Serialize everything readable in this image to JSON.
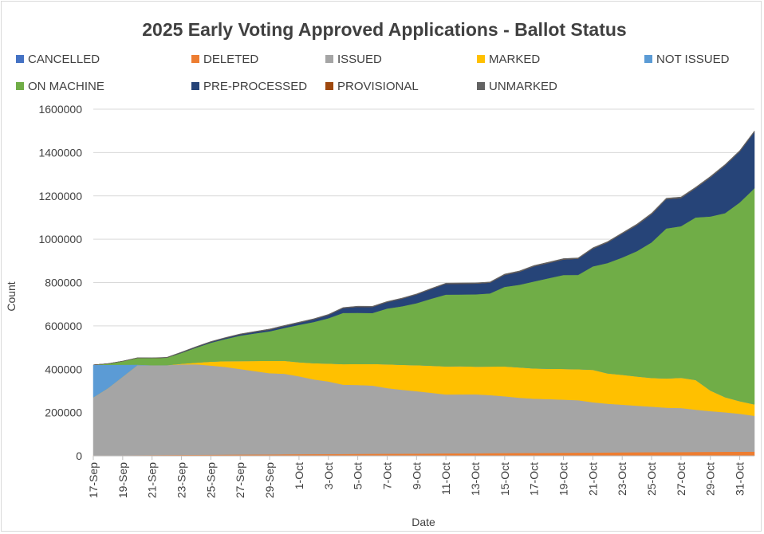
{
  "chart_data": {
    "type": "area",
    "stacked": true,
    "title": "2025 Early Voting Approved Applications - Ballot Status",
    "xlabel": "Date",
    "ylabel": "Count",
    "ylim": [
      0,
      1600000
    ],
    "yticks": [
      0,
      200000,
      400000,
      600000,
      800000,
      1000000,
      1200000,
      1400000,
      1600000
    ],
    "grid": true,
    "legend_position": "top",
    "x": [
      "17-Sep",
      "18-Sep",
      "19-Sep",
      "20-Sep",
      "21-Sep",
      "22-Sep",
      "23-Sep",
      "24-Sep",
      "25-Sep",
      "26-Sep",
      "27-Sep",
      "28-Sep",
      "29-Sep",
      "30-Sep",
      "1-Oct",
      "2-Oct",
      "3-Oct",
      "4-Oct",
      "5-Oct",
      "6-Oct",
      "7-Oct",
      "8-Oct",
      "9-Oct",
      "10-Oct",
      "11-Oct",
      "12-Oct",
      "13-Oct",
      "14-Oct",
      "15-Oct",
      "16-Oct",
      "17-Oct",
      "18-Oct",
      "19-Oct",
      "20-Oct",
      "21-Oct",
      "22-Oct",
      "23-Oct",
      "24-Oct",
      "25-Oct",
      "26-Oct",
      "27-Oct",
      "28-Oct",
      "29-Oct",
      "30-Oct",
      "31-Oct",
      "1-Nov"
    ],
    "xtick_labels": [
      "17-Sep",
      "19-Sep",
      "21-Sep",
      "23-Sep",
      "25-Sep",
      "27-Sep",
      "29-Sep",
      "1-Oct",
      "3-Oct",
      "5-Oct",
      "7-Oct",
      "9-Oct",
      "11-Oct",
      "13-Oct",
      "15-Oct",
      "17-Oct",
      "19-Oct",
      "21-Oct",
      "23-Oct",
      "25-Oct",
      "27-Oct",
      "29-Oct",
      "31-Oct"
    ],
    "series": [
      {
        "name": "CANCELLED",
        "color": "#4472C4",
        "values": [
          0,
          0,
          0,
          0,
          0,
          0,
          0,
          0,
          0,
          0,
          0,
          0,
          0,
          0,
          0,
          0,
          0,
          0,
          0,
          0,
          0,
          0,
          0,
          0,
          0,
          0,
          0,
          0,
          0,
          0,
          0,
          0,
          0,
          0,
          0,
          0,
          0,
          0,
          0,
          0,
          0,
          0,
          0,
          0,
          0,
          0
        ]
      },
      {
        "name": "DELETED",
        "color": "#ED7D31",
        "values": [
          2000,
          2400,
          2800,
          3200,
          3600,
          4000,
          4400,
          4800,
          5200,
          5600,
          6000,
          6400,
          6800,
          7200,
          7600,
          8000,
          8400,
          8800,
          9200,
          9600,
          10000,
          10400,
          10800,
          11200,
          11600,
          12000,
          12400,
          12800,
          13200,
          13600,
          14000,
          14400,
          14800,
          15200,
          15600,
          16000,
          16400,
          16800,
          17200,
          17600,
          18000,
          18400,
          18800,
          19200,
          19600,
          20000
        ]
      },
      {
        "name": "ISSUED",
        "color": "#A5A5A5",
        "values": [
          268000,
          310000,
          362000,
          415000,
          415000,
          415000,
          418000,
          418000,
          412000,
          405000,
          395000,
          385000,
          375000,
          372000,
          360000,
          345000,
          335000,
          320000,
          318000,
          315000,
          303000,
          295000,
          288000,
          280000,
          272000,
          272000,
          272000,
          268000,
          262000,
          255000,
          250000,
          248000,
          245000,
          242000,
          232000,
          225000,
          220000,
          215000,
          210000,
          205000,
          203000,
          195000,
          188000,
          182000,
          175000,
          165000
        ]
      },
      {
        "name": "MARKED",
        "color": "#FFC000",
        "values": [
          0,
          0,
          0,
          0,
          0,
          0,
          3000,
          8000,
          18000,
          27000,
          37000,
          47000,
          57000,
          60000,
          65000,
          75000,
          83000,
          95000,
          97000,
          100000,
          110000,
          115000,
          120000,
          125000,
          130000,
          130000,
          128000,
          132000,
          138000,
          140000,
          140000,
          140000,
          142000,
          143000,
          150000,
          140000,
          138000,
          135000,
          133000,
          135000,
          140000,
          137000,
          95000,
          70000,
          58000,
          53000
        ]
      },
      {
        "name": "NOT ISSUED",
        "color": "#5B9BD5",
        "values": [
          150000,
          108000,
          56000,
          3000,
          0,
          0,
          0,
          0,
          0,
          0,
          0,
          0,
          0,
          0,
          0,
          0,
          0,
          0,
          0,
          0,
          0,
          0,
          0,
          0,
          0,
          0,
          0,
          0,
          0,
          0,
          0,
          0,
          0,
          0,
          0,
          0,
          0,
          0,
          0,
          0,
          0,
          0,
          0,
          0,
          0,
          0
        ]
      },
      {
        "name": "ON MACHINE",
        "color": "#70AD47",
        "values": [
          0,
          5000,
          16000,
          31000,
          33000,
          34000,
          50000,
          69000,
          87000,
          102000,
          117000,
          127000,
          136000,
          151000,
          172000,
          190000,
          209000,
          236000,
          236000,
          235000,
          257000,
          270000,
          286000,
          309000,
          331000,
          331000,
          333000,
          337000,
          367000,
          381000,
          401000,
          418000,
          433000,
          435000,
          477000,
          509000,
          541000,
          578000,
          625000,
          692000,
          699000,
          750000,
          803000,
          849000,
          917000,
          997000
        ]
      },
      {
        "name": "PRE-PROCESSED",
        "color": "#264478",
        "values": [
          0,
          0,
          0,
          0,
          0,
          1000,
          2000,
          3000,
          4000,
          5000,
          6000,
          7000,
          8000,
          9000,
          10000,
          12000,
          15000,
          22000,
          28000,
          28000,
          30000,
          35000,
          40000,
          45000,
          50000,
          50000,
          50000,
          50000,
          55000,
          60000,
          70000,
          70000,
          72000,
          75000,
          82000,
          95000,
          110000,
          120000,
          130000,
          135000,
          130000,
          135000,
          180000,
          220000,
          235000,
          260000
        ]
      },
      {
        "name": "PROVISIONAL",
        "color": "#9E480E",
        "values": [
          0,
          0,
          0,
          0,
          0,
          0,
          0,
          0,
          0,
          0,
          0,
          0,
          0,
          0,
          0,
          0,
          0,
          0,
          0,
          0,
          0,
          0,
          0,
          0,
          0,
          0,
          0,
          0,
          0,
          0,
          0,
          0,
          0,
          0,
          0,
          0,
          0,
          0,
          0,
          0,
          0,
          0,
          0,
          0,
          0,
          0
        ]
      },
      {
        "name": "UNMARKED",
        "color": "#636363",
        "values": [
          0,
          1000,
          1000,
          1000,
          1000,
          1000,
          2000,
          2000,
          2000,
          2000,
          2000,
          2000,
          3000,
          3000,
          3000,
          3000,
          3000,
          3000,
          3000,
          3000,
          3000,
          3000,
          3000,
          3000,
          3000,
          3000,
          3000,
          3000,
          4000,
          4000,
          4000,
          4000,
          4000,
          4000,
          4000,
          4000,
          4000,
          5000,
          5000,
          5000,
          5000,
          5000,
          5000,
          5000,
          5000,
          5000
        ]
      }
    ]
  }
}
